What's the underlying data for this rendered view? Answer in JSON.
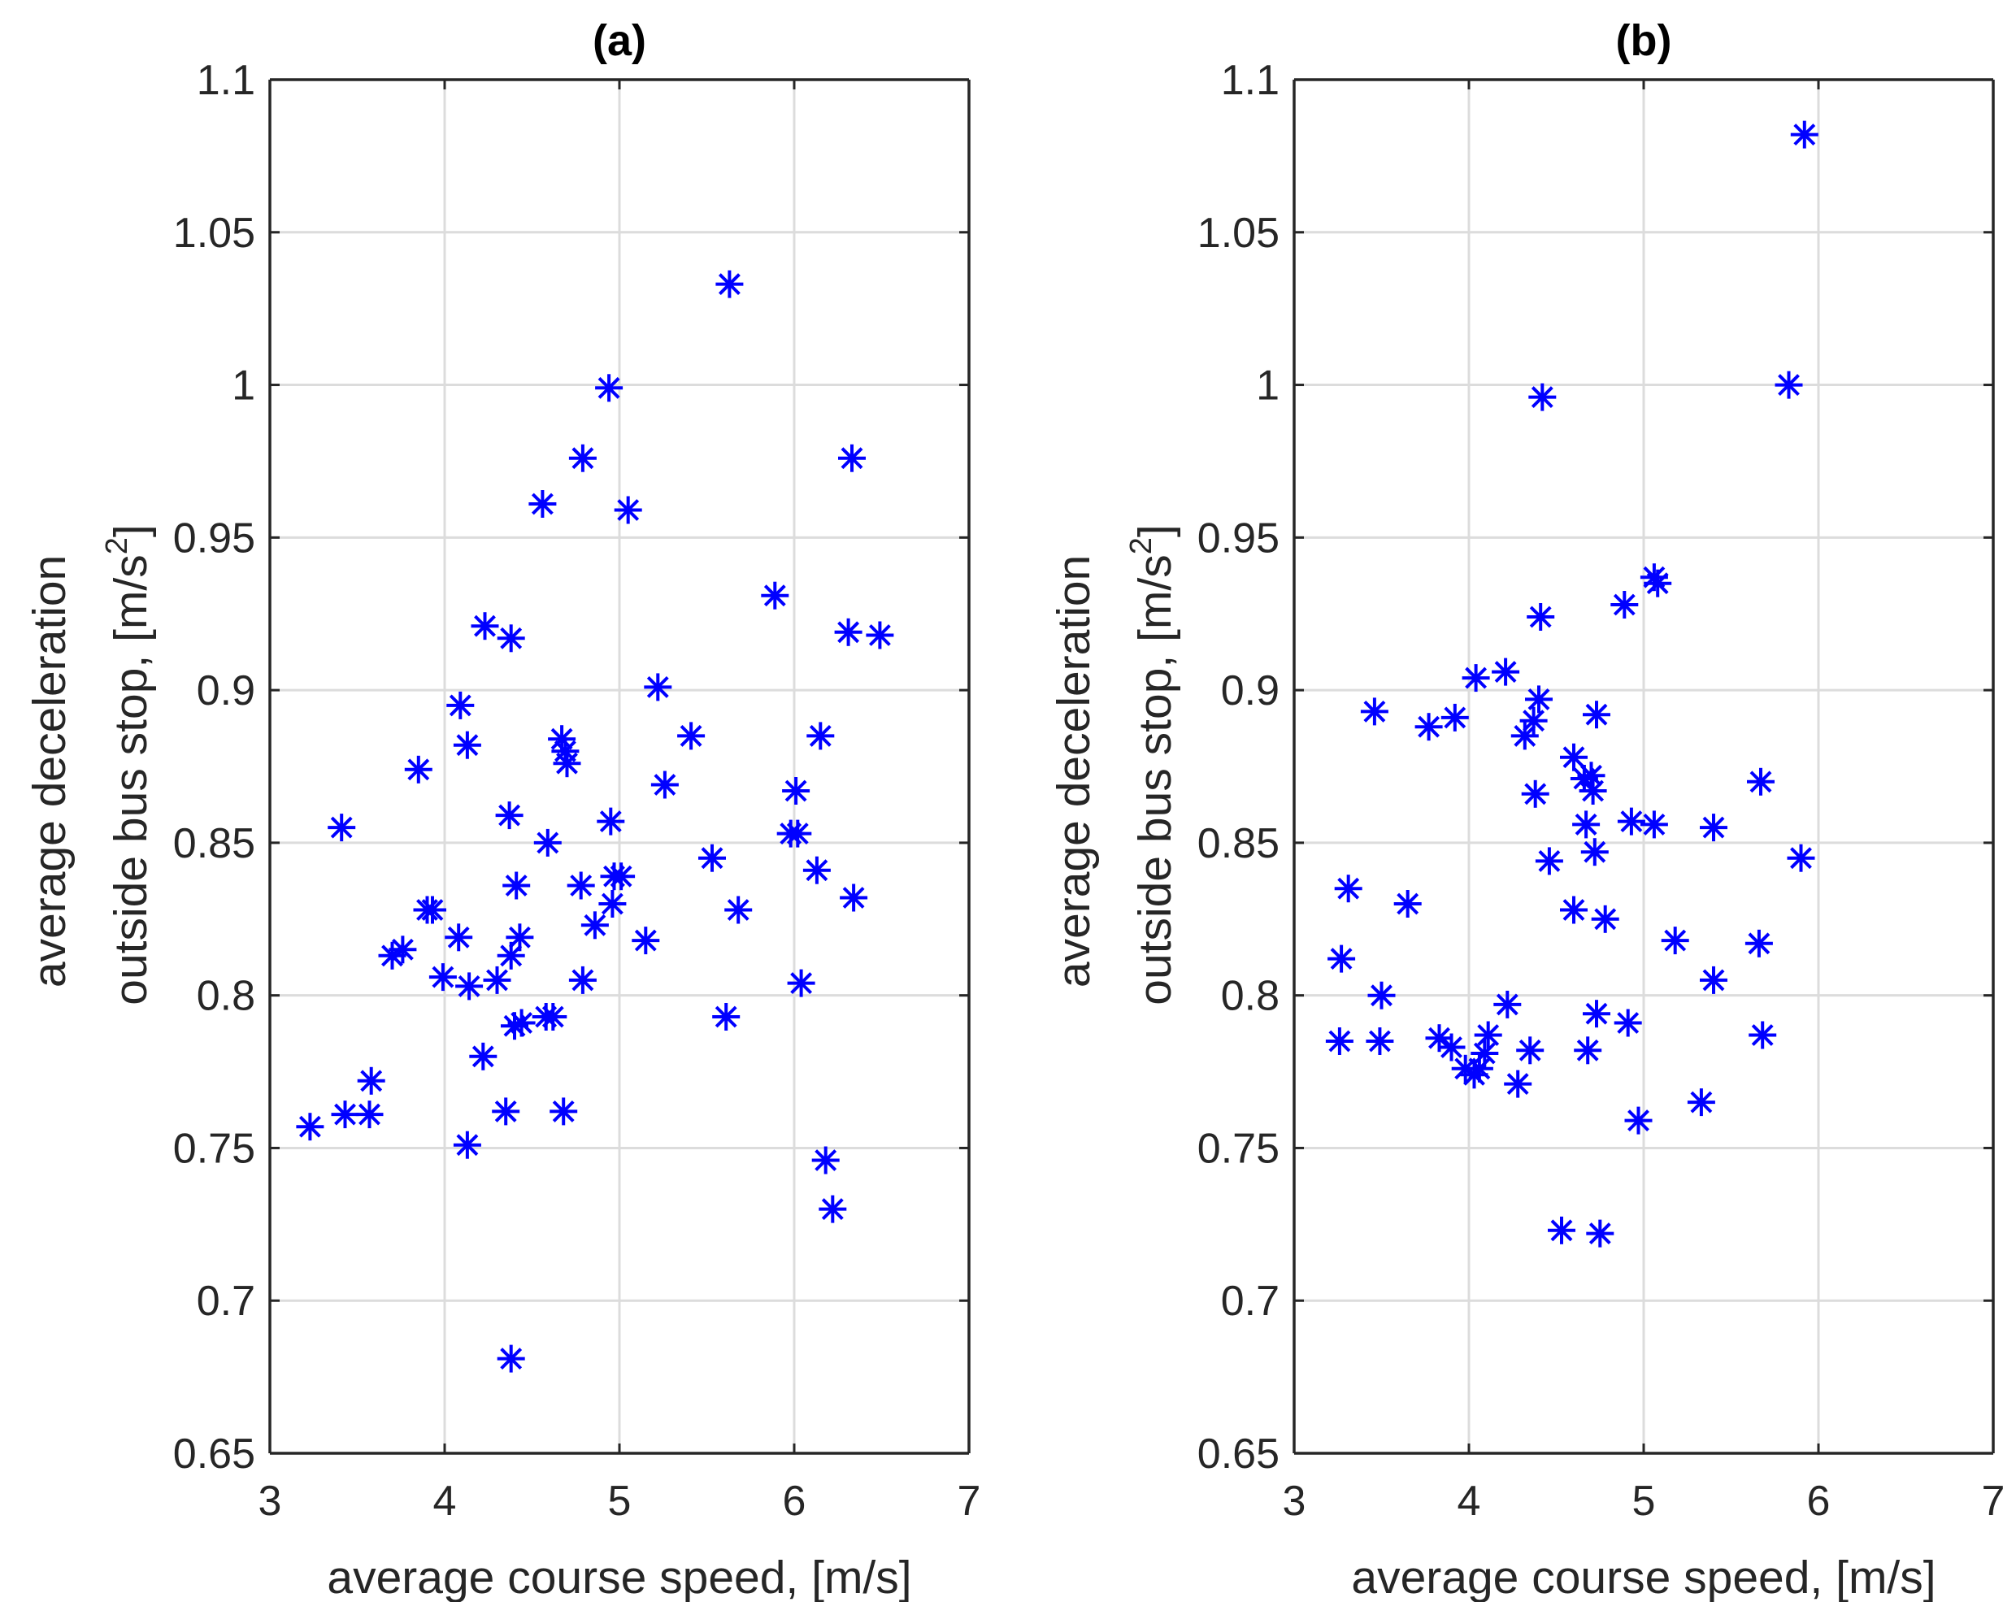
{
  "colors": {
    "marker": "#0000ff",
    "grid": "#dcdcdc",
    "axis": "#262626"
  },
  "chart_data": [
    {
      "type": "scatter",
      "title": "(a)",
      "xlabel": "average course speed, [m/s]",
      "ylabel_line1": "average deceleration",
      "ylabel_line2": "outside bus stop, [m/s",
      "ylabel_sup": "2",
      "ylabel_close": "]",
      "xlim": [
        3,
        7
      ],
      "ylim": [
        0.65,
        1.1
      ],
      "xticks": [
        3,
        4,
        5,
        6,
        7
      ],
      "xtick_labels": [
        "3",
        "4",
        "5",
        "6",
        "7"
      ],
      "yticks": [
        0.65,
        0.7,
        0.75,
        0.8,
        0.85,
        0.9,
        0.95,
        1.0,
        1.05,
        1.1
      ],
      "ytick_labels": [
        "0.65",
        "0.7",
        "0.75",
        "0.8",
        "0.85",
        "0.9",
        "0.95",
        "1",
        "1.05",
        "1.1"
      ],
      "grid": true,
      "marker": "asterisk",
      "points": [
        [
          3.23,
          0.757
        ],
        [
          3.43,
          0.761
        ],
        [
          3.57,
          0.761
        ],
        [
          3.58,
          0.772
        ],
        [
          3.41,
          0.855
        ],
        [
          3.7,
          0.813
        ],
        [
          3.76,
          0.815
        ],
        [
          3.85,
          0.874
        ],
        [
          3.9,
          0.828
        ],
        [
          3.93,
          0.828
        ],
        [
          3.99,
          0.806
        ],
        [
          4.08,
          0.819
        ],
        [
          4.09,
          0.895
        ],
        [
          4.13,
          0.882
        ],
        [
          4.14,
          0.803
        ],
        [
          4.13,
          0.751
        ],
        [
          4.22,
          0.78
        ],
        [
          4.23,
          0.921
        ],
        [
          4.3,
          0.805
        ],
        [
          4.35,
          0.762
        ],
        [
          4.37,
          0.859
        ],
        [
          4.38,
          0.917
        ],
        [
          4.38,
          0.681
        ],
        [
          4.38,
          0.813
        ],
        [
          4.4,
          0.79
        ],
        [
          4.41,
          0.836
        ],
        [
          4.43,
          0.819
        ],
        [
          4.44,
          0.791
        ],
        [
          4.56,
          0.961
        ],
        [
          4.58,
          0.793
        ],
        [
          4.59,
          0.85
        ],
        [
          4.62,
          0.793
        ],
        [
          4.67,
          0.884
        ],
        [
          4.68,
          0.762
        ],
        [
          4.69,
          0.88
        ],
        [
          4.7,
          0.876
        ],
        [
          4.78,
          0.836
        ],
        [
          4.79,
          0.976
        ],
        [
          4.79,
          0.805
        ],
        [
          4.86,
          0.823
        ],
        [
          4.94,
          0.999
        ],
        [
          4.95,
          0.857
        ],
        [
          4.96,
          0.83
        ],
        [
          4.97,
          0.839
        ],
        [
          5.01,
          0.839
        ],
        [
          5.05,
          0.959
        ],
        [
          5.15,
          0.818
        ],
        [
          5.22,
          0.901
        ],
        [
          5.26,
          0.869
        ],
        [
          5.41,
          0.885
        ],
        [
          5.53,
          0.845
        ],
        [
          5.61,
          0.793
        ],
        [
          5.63,
          1.033
        ],
        [
          5.68,
          0.828
        ],
        [
          5.89,
          0.931
        ],
        [
          5.98,
          0.853
        ],
        [
          6.01,
          0.867
        ],
        [
          6.02,
          0.853
        ],
        [
          6.04,
          0.804
        ],
        [
          6.13,
          0.841
        ],
        [
          6.15,
          0.885
        ],
        [
          6.18,
          0.746
        ],
        [
          6.22,
          0.73
        ],
        [
          6.31,
          0.919
        ],
        [
          6.33,
          0.976
        ],
        [
          6.34,
          0.832
        ],
        [
          6.49,
          0.918
        ]
      ]
    },
    {
      "type": "scatter",
      "title": "(b)",
      "xlabel": "average course speed, [m/s]",
      "ylabel_line1": "average deceleration",
      "ylabel_line2": "outside bus stop, [m/s",
      "ylabel_sup": "2",
      "ylabel_close": "]",
      "xlim": [
        3,
        7
      ],
      "ylim": [
        0.65,
        1.1
      ],
      "xticks": [
        3,
        4,
        5,
        6,
        7
      ],
      "xtick_labels": [
        "3",
        "4",
        "5",
        "6",
        "7"
      ],
      "yticks": [
        0.65,
        0.7,
        0.75,
        0.8,
        0.85,
        0.9,
        0.95,
        1.0,
        1.05,
        1.1
      ],
      "ytick_labels": [
        "0.65",
        "0.7",
        "0.75",
        "0.8",
        "0.85",
        "0.9",
        "0.95",
        "1",
        "1.05",
        "1.1"
      ],
      "grid": true,
      "marker": "asterisk",
      "points": [
        [
          3.26,
          0.785
        ],
        [
          3.27,
          0.812
        ],
        [
          3.31,
          0.835
        ],
        [
          3.46,
          0.893
        ],
        [
          3.49,
          0.785
        ],
        [
          3.5,
          0.8
        ],
        [
          3.65,
          0.83
        ],
        [
          3.77,
          0.888
        ],
        [
          3.83,
          0.786
        ],
        [
          3.9,
          0.783
        ],
        [
          3.92,
          0.891
        ],
        [
          3.98,
          0.776
        ],
        [
          4.03,
          0.774
        ],
        [
          4.04,
          0.904
        ],
        [
          4.06,
          0.776
        ],
        [
          4.09,
          0.781
        ],
        [
          4.11,
          0.787
        ],
        [
          4.21,
          0.906
        ],
        [
          4.22,
          0.797
        ],
        [
          4.28,
          0.771
        ],
        [
          4.32,
          0.885
        ],
        [
          4.35,
          0.782
        ],
        [
          4.37,
          0.89
        ],
        [
          4.38,
          0.866
        ],
        [
          4.4,
          0.897
        ],
        [
          4.41,
          0.924
        ],
        [
          4.42,
          0.996
        ],
        [
          4.46,
          0.844
        ],
        [
          4.53,
          0.723
        ],
        [
          4.6,
          0.878
        ],
        [
          4.6,
          0.828
        ],
        [
          4.66,
          0.871
        ],
        [
          4.67,
          0.856
        ],
        [
          4.68,
          0.782
        ],
        [
          4.7,
          0.872
        ],
        [
          4.71,
          0.867
        ],
        [
          4.72,
          0.847
        ],
        [
          4.73,
          0.794
        ],
        [
          4.73,
          0.892
        ],
        [
          4.75,
          0.722
        ],
        [
          4.78,
          0.825
        ],
        [
          4.89,
          0.928
        ],
        [
          4.91,
          0.791
        ],
        [
          4.93,
          0.857
        ],
        [
          4.97,
          0.759
        ],
        [
          5.06,
          0.856
        ],
        [
          5.06,
          0.937
        ],
        [
          5.08,
          0.935
        ],
        [
          5.18,
          0.818
        ],
        [
          5.33,
          0.765
        ],
        [
          5.4,
          0.855
        ],
        [
          5.4,
          0.805
        ],
        [
          5.66,
          0.817
        ],
        [
          5.67,
          0.87
        ],
        [
          5.68,
          0.787
        ],
        [
          5.83,
          1.0
        ],
        [
          5.9,
          0.845
        ],
        [
          5.92,
          1.082
        ]
      ]
    }
  ]
}
